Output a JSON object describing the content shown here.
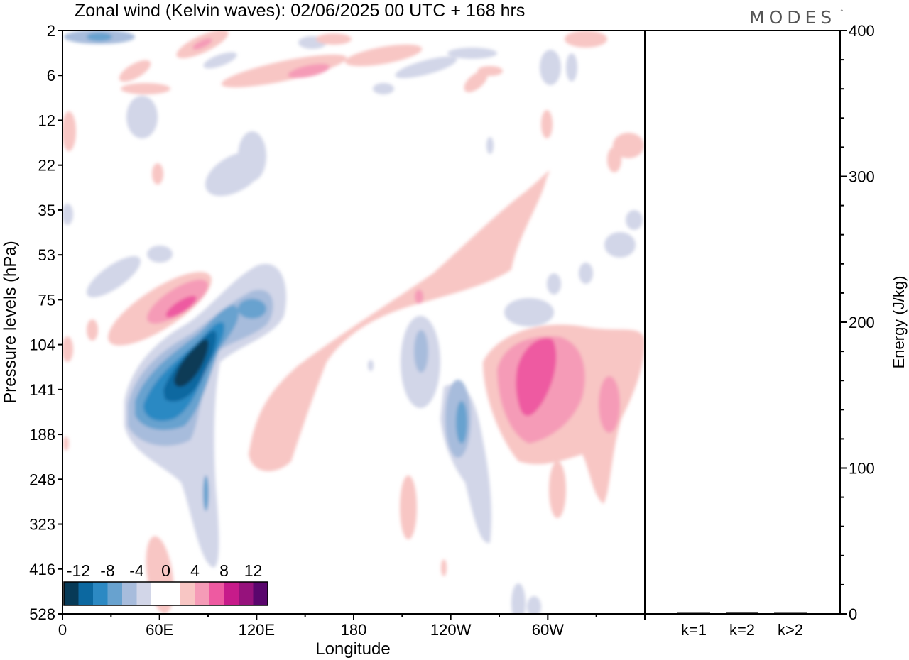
{
  "title": "Zonal wind (Kelvin waves):  02/06/2025  00 UTC  + 168 hrs",
  "logo": "MODES",
  "chart_data": [
    {
      "type": "heatmap",
      "xlabel": "Longitude",
      "ylabel": "Pressure levels (hPa)",
      "x_ticks": [
        "0",
        "60E",
        "120E",
        "180",
        "120W",
        "60W"
      ],
      "y_ticks": [
        "2",
        "6",
        "12",
        "22",
        "35",
        "53",
        "75",
        "104",
        "141",
        "188",
        "248",
        "323",
        "416",
        "528"
      ],
      "colorbar": {
        "labels": [
          "-12",
          "-8",
          "-4",
          "0",
          "4",
          "8",
          "12"
        ],
        "colors": [
          "#073a57",
          "#0c68a0",
          "#2c89c3",
          "#68a2cf",
          "#a7bcdc",
          "#d2d6e8",
          "#ffffff",
          "#ffffff",
          "#f8c6c4",
          "#f59bb7",
          "#ee5aa1",
          "#c71b8a",
          "#96127c",
          "#5a066d"
        ]
      },
      "features": [
        {
          "name": "negative anomaly core (60E–100E)",
          "lon": 75,
          "level": "104–141",
          "value": -14
        },
        {
          "name": "positive anomaly (60E–90E)",
          "lon": 70,
          "level": "75",
          "value": 7
        },
        {
          "name": "positive anomaly (90W–0)",
          "lon": 300,
          "level": "104–188",
          "value": 8
        },
        {
          "name": "negative anomaly (120W)",
          "lon": 250,
          "level": "141–188",
          "value": -5
        },
        {
          "name": "positive tilted band (150E–60W)",
          "lon": 220,
          "level": "35–141",
          "value": 4
        }
      ]
    },
    {
      "type": "bar",
      "categories": [
        "k=1",
        "k=2",
        "k>2"
      ],
      "values": [
        0.5,
        0.8,
        0.7
      ],
      "ylabel": "Energy (J/kg)",
      "y_ticks": [
        "0",
        "100",
        "200",
        "300",
        "400"
      ],
      "ylim": [
        0,
        400
      ]
    }
  ]
}
